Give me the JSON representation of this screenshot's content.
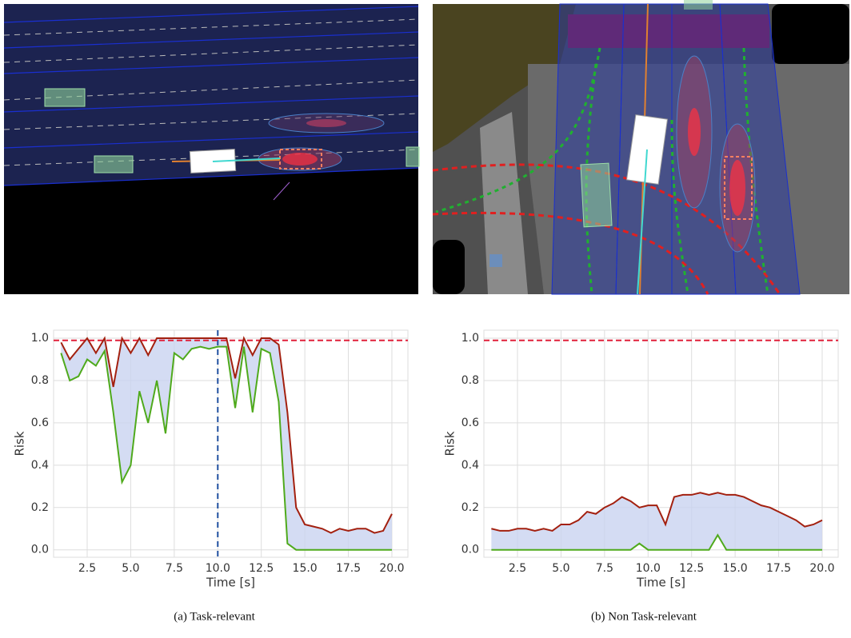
{
  "chart_data": [
    {
      "type": "line",
      "caption": "(a) Task-relevant",
      "xlabel": "Time [s]",
      "ylabel": "Risk",
      "x": [
        1,
        1.5,
        2,
        2.5,
        3,
        3.5,
        4,
        4.5,
        5,
        5.5,
        6,
        6.5,
        7,
        7.5,
        8,
        8.5,
        9,
        9.5,
        10,
        10.5,
        11,
        11.5,
        12,
        12.5,
        13,
        13.5,
        14,
        14.5,
        15,
        15.5,
        16,
        16.5,
        17,
        17.5,
        18,
        18.5,
        19,
        19.5,
        20
      ],
      "series": [
        {
          "color": "#a3200f",
          "values": [
            0.98,
            0.9,
            0.95,
            1.0,
            0.93,
            1.0,
            0.77,
            1.0,
            0.93,
            1.0,
            0.92,
            1.0,
            1.0,
            1.0,
            1.0,
            1.0,
            1.0,
            1.0,
            1.0,
            1.0,
            0.81,
            1.0,
            0.92,
            1.0,
            1.0,
            0.97,
            0.65,
            0.2,
            0.12,
            0.11,
            0.1,
            0.08,
            0.1,
            0.09,
            0.1,
            0.1,
            0.08,
            0.09,
            0.17
          ]
        },
        {
          "color": "#4faa1c",
          "values": [
            0.93,
            0.8,
            0.82,
            0.9,
            0.87,
            0.94,
            0.65,
            0.32,
            0.4,
            0.75,
            0.6,
            0.8,
            0.55,
            0.93,
            0.9,
            0.95,
            0.96,
            0.95,
            0.96,
            0.96,
            0.67,
            0.96,
            0.65,
            0.95,
            0.93,
            0.7,
            0.03,
            0,
            0,
            0,
            0,
            0,
            0,
            0,
            0,
            0,
            0,
            0,
            0
          ]
        }
      ],
      "threshold": 0.99,
      "vline": 10,
      "xlim": [
        0.57,
        20.92
      ],
      "ylim": [
        -0.035,
        1.038
      ],
      "xticks": [
        2.5,
        {
          "value": 5,
          "label": "5.0"
        },
        7.5,
        {
          "value": 10,
          "label": "10.0"
        },
        12.5,
        {
          "value": 15,
          "label": "15.0"
        },
        17.5,
        {
          "value": 20,
          "label": "20.0"
        }
      ],
      "yticks": [
        {
          "value": 0,
          "label": "0.0"
        },
        0.2,
        0.4,
        0.6,
        0.8,
        {
          "value": 1,
          "label": "1.0"
        }
      ],
      "grid": true
    },
    {
      "type": "line",
      "caption": "(b) Non Task-relevant",
      "xlabel": "Time [s]",
      "ylabel": "Risk",
      "x": [
        1,
        1.5,
        2,
        2.5,
        3,
        3.5,
        4,
        4.5,
        5,
        5.5,
        6,
        6.5,
        7,
        7.5,
        8,
        8.5,
        9,
        9.5,
        10,
        10.5,
        11,
        11.5,
        12,
        12.5,
        13,
        13.5,
        14,
        14.5,
        15,
        15.5,
        16,
        16.5,
        17,
        17.5,
        18,
        18.5,
        19,
        19.5,
        20
      ],
      "series": [
        {
          "color": "#a3200f",
          "values": [
            0.1,
            0.09,
            0.09,
            0.1,
            0.1,
            0.09,
            0.1,
            0.09,
            0.12,
            0.12,
            0.14,
            0.18,
            0.17,
            0.2,
            0.22,
            0.25,
            0.23,
            0.2,
            0.21,
            0.21,
            0.12,
            0.25,
            0.26,
            0.26,
            0.27,
            0.26,
            0.27,
            0.26,
            0.26,
            0.25,
            0.23,
            0.21,
            0.2,
            0.18,
            0.16,
            0.14,
            0.11,
            0.12,
            0.14
          ]
        },
        {
          "color": "#4faa1c",
          "values": [
            0,
            0,
            0,
            0,
            0,
            0,
            0,
            0,
            0,
            0,
            0,
            0,
            0,
            0,
            0,
            0,
            0,
            0.03,
            0,
            0,
            0,
            0,
            0,
            0,
            0,
            0,
            0.07,
            0,
            0,
            0,
            0,
            0,
            0,
            0,
            0,
            0,
            0,
            0,
            0
          ]
        }
      ],
      "threshold": 0.99,
      "xlim": [
        0.57,
        20.92
      ],
      "ylim": [
        -0.035,
        1.038
      ],
      "xticks": [
        2.5,
        {
          "value": 5,
          "label": "5.0"
        },
        7.5,
        {
          "value": 10,
          "label": "10.0"
        },
        12.5,
        {
          "value": 15,
          "label": "15.0"
        },
        17.5,
        {
          "value": 20,
          "label": "20.0"
        }
      ],
      "yticks": [
        {
          "value": 0,
          "label": "0.0"
        },
        0.2,
        0.4,
        0.6,
        0.8,
        {
          "value": 1,
          "label": "1.0"
        }
      ],
      "grid": true
    }
  ]
}
